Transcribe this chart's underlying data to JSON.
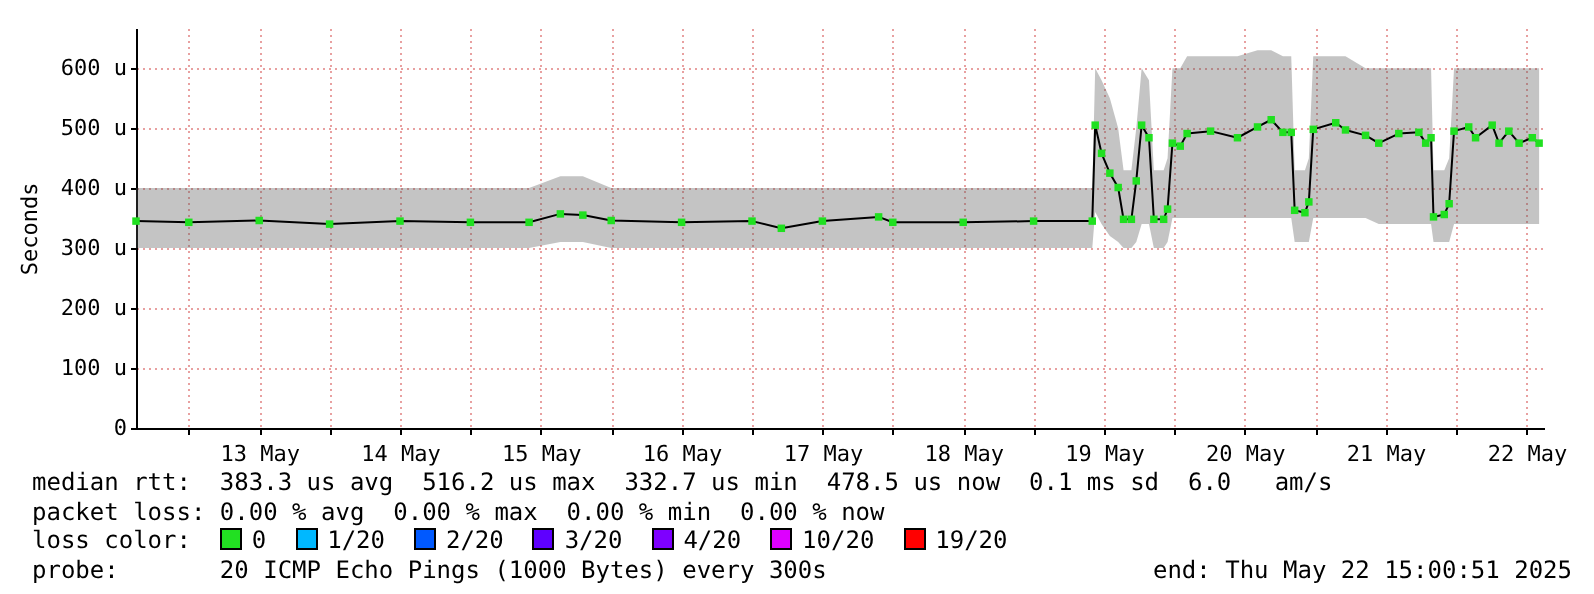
{
  "chart_data": {
    "type": "line",
    "ylabel": "Seconds",
    "x": [
      "2025-05-12T15:00",
      "2025-05-13T00:00",
      "2025-05-13T12:00",
      "2025-05-14T00:00",
      "2025-05-14T12:00",
      "2025-05-15T00:00",
      "2025-05-15T10:00",
      "2025-05-15T15:20",
      "2025-05-15T19:10",
      "2025-05-16T00:00",
      "2025-05-16T12:00",
      "2025-05-17T00:00",
      "2025-05-17T05:00",
      "2025-05-17T12:00",
      "2025-05-17T21:35",
      "2025-05-18T00:00",
      "2025-05-18T12:00",
      "2025-05-19T00:00",
      "2025-05-19T10:00",
      "2025-05-19T10:30",
      "2025-05-19T11:35",
      "2025-05-19T13:00",
      "2025-05-19T14:25",
      "2025-05-19T15:20",
      "2025-05-19T16:40",
      "2025-05-19T17:30",
      "2025-05-19T18:25",
      "2025-05-19T19:40",
      "2025-05-19T20:30",
      "2025-05-19T22:10",
      "2025-05-19T22:50",
      "2025-05-19T23:40",
      "2025-05-20T01:00",
      "2025-05-20T02:10",
      "2025-05-20T06:10",
      "2025-05-20T10:45",
      "2025-05-20T14:10",
      "2025-05-20T16:30",
      "2025-05-20T18:30",
      "2025-05-20T19:55",
      "2025-05-20T20:30",
      "2025-05-20T22:15",
      "2025-05-20T22:55",
      "2025-05-20T23:40",
      "2025-05-21T03:30",
      "2025-05-21T05:10",
      "2025-05-21T08:35",
      "2025-05-21T10:50",
      "2025-05-21T14:15",
      "2025-05-21T17:40",
      "2025-05-21T18:50",
      "2025-05-21T19:45",
      "2025-05-21T20:10",
      "2025-05-21T22:00",
      "2025-05-21T22:50",
      "2025-05-21T23:40",
      "2025-05-22T02:10",
      "2025-05-22T03:20",
      "2025-05-22T06:10",
      "2025-05-22T07:20",
      "2025-05-22T09:00",
      "2025-05-22T10:45",
      "2025-05-22T13:00",
      "2025-05-22T14:10"
    ],
    "series": [
      {
        "color": "#20e020",
        "values": [
          345,
          343,
          346,
          340,
          345,
          343,
          343,
          357,
          355,
          346,
          343,
          345,
          333,
          345,
          352,
          343,
          343,
          345,
          345,
          505,
          458,
          425,
          401,
          348,
          348,
          412,
          505,
          484,
          348,
          348,
          365,
          475,
          470,
          491,
          495,
          484,
          502,
          514,
          493,
          493,
          363,
          359,
          377,
          498,
          509,
          497,
          488,
          475,
          491,
          493,
          475,
          484,
          352,
          356,
          374,
          495,
          502,
          484,
          505,
          475,
          495,
          475,
          484,
          475
        ],
        "lower": [
          300,
          300,
          300,
          300,
          300,
          300,
          300,
          310,
          310,
          300,
          300,
          300,
          300,
          300,
          300,
          300,
          300,
          300,
          300,
          360,
          340,
          320,
          310,
          300,
          300,
          310,
          340,
          340,
          300,
          300,
          310,
          350,
          350,
          350,
          350,
          350,
          350,
          350,
          350,
          350,
          310,
          310,
          310,
          350,
          350,
          350,
          350,
          340,
          340,
          340,
          340,
          340,
          310,
          310,
          310,
          340,
          340,
          340,
          340,
          340,
          340,
          340,
          340,
          340
        ],
        "upper": [
          400,
          400,
          400,
          400,
          400,
          400,
          400,
          420,
          420,
          400,
          400,
          400,
          400,
          400,
          400,
          400,
          400,
          400,
          400,
          600,
          580,
          550,
          500,
          430,
          430,
          500,
          600,
          580,
          430,
          430,
          450,
          600,
          600,
          620,
          620,
          620,
          630,
          630,
          620,
          620,
          430,
          430,
          450,
          620,
          620,
          620,
          600,
          600,
          600,
          600,
          600,
          600,
          430,
          430,
          450,
          600,
          600,
          600,
          600,
          600,
          600,
          600,
          600,
          600
        ]
      }
    ],
    "xlim": [
      "2025-05-12T15:00",
      "2025-05-22T15:00"
    ],
    "xticks": [
      {
        "value": "2025-05-13T00:00",
        "label": null
      },
      {
        "value": "2025-05-13T12:00",
        "label": "13 May"
      },
      {
        "value": "2025-05-14T00:00",
        "label": null
      },
      {
        "value": "2025-05-14T12:00",
        "label": "14 May"
      },
      {
        "value": "2025-05-15T00:00",
        "label": null
      },
      {
        "value": "2025-05-15T12:00",
        "label": "15 May"
      },
      {
        "value": "2025-05-16T00:00",
        "label": null
      },
      {
        "value": "2025-05-16T12:00",
        "label": "16 May"
      },
      {
        "value": "2025-05-17T00:00",
        "label": null
      },
      {
        "value": "2025-05-17T12:00",
        "label": "17 May"
      },
      {
        "value": "2025-05-18T00:00",
        "label": null
      },
      {
        "value": "2025-05-18T12:00",
        "label": "18 May"
      },
      {
        "value": "2025-05-19T00:00",
        "label": null
      },
      {
        "value": "2025-05-19T12:00",
        "label": "19 May"
      },
      {
        "value": "2025-05-20T00:00",
        "label": null
      },
      {
        "value": "2025-05-20T12:00",
        "label": "20 May"
      },
      {
        "value": "2025-05-21T00:00",
        "label": null
      },
      {
        "value": "2025-05-21T12:00",
        "label": "21 May"
      },
      {
        "value": "2025-05-22T00:00",
        "label": null
      },
      {
        "value": "2025-05-22T12:00",
        "label": "22 May"
      }
    ],
    "ylim": [
      0,
      667
    ],
    "yticks": [
      0,
      {
        "value": 100,
        "label": "100 u"
      },
      {
        "value": 200,
        "label": "200 u"
      },
      {
        "value": 300,
        "label": "300 u"
      },
      {
        "value": 400,
        "label": "400 u"
      },
      {
        "value": 500,
        "label": "500 u"
      },
      {
        "value": 600,
        "label": "600 u"
      }
    ],
    "grid": true,
    "marker": "square",
    "line_style": "solid",
    "annotations": [
      "median rtt:  383.3 us avg  516.2 us max  332.7 us min  478.5 us now  0.1 ms sd  6.0   am/s",
      "packet loss: 0.00 % avg  0.00 % max  0.00 % min  0.00 % now",
      "loss color:  0  1/20  2/20  3/20  4/20  10/20  19/20",
      "probe:       20 ICMP Echo Pings (1000 Bytes) every 300s",
      "end: Thu May 22 15:00:51 2025"
    ]
  }
}
